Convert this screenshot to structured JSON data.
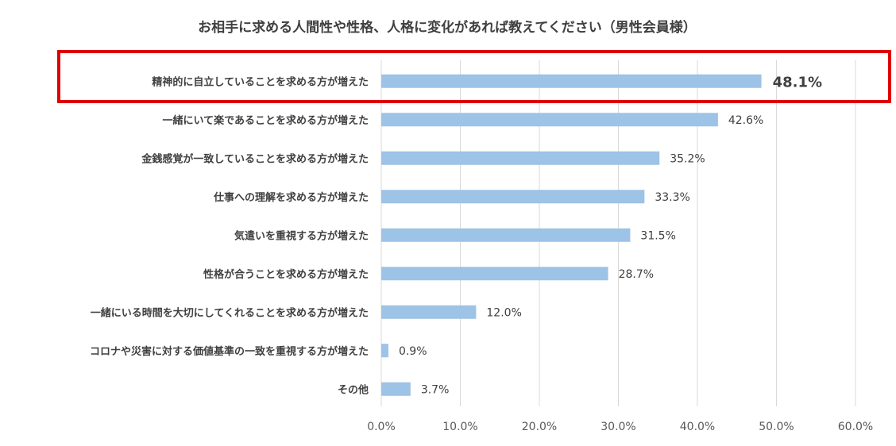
{
  "chart_data": {
    "type": "bar",
    "orientation": "horizontal",
    "title": "お相手に求める人間性や性格、人格に変化があれば教えてください（男性会員様）",
    "categories": [
      "精神的に自立していることを求める方が増えた",
      "一緒にいて楽であることを求める方が増えた",
      "金銭感覚が一致していることを求める方が増えた",
      "仕事への理解を求める方が増えた",
      "気遣いを重視する方が増えた",
      "性格が合うことを求める方が増えた",
      "一緒にいる時間を大切にしてくれることを求める方が増えた",
      "コロナや災害に対する価値基準の一致を重視する方が増えた",
      "その他"
    ],
    "values": [
      48.1,
      42.6,
      35.2,
      33.3,
      31.5,
      28.7,
      12.0,
      0.9,
      3.7
    ],
    "value_labels": [
      "48.1%",
      "42.6%",
      "35.2%",
      "33.3%",
      "31.5%",
      "28.7%",
      "12.0%",
      "0.9%",
      "3.7%"
    ],
    "xlim": [
      0,
      60
    ],
    "xticks": [
      "0.0%",
      "10.0%",
      "20.0%",
      "30.0%",
      "40.0%",
      "50.0%",
      "60.0%"
    ],
    "grid": "vertical",
    "highlight": {
      "category_index": 0,
      "border_color": "#e00000"
    },
    "colors": {
      "bar": "#9dc3e6",
      "grid": "#d9d9d9",
      "text": "#404040"
    }
  }
}
